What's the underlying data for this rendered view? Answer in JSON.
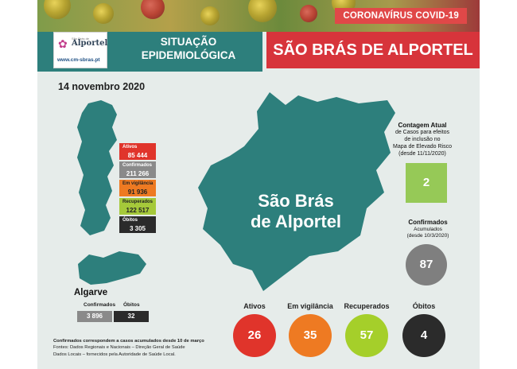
{
  "banner": {
    "tag": "CORONAVÍRUS COVID-19"
  },
  "logo": {
    "name": "Alportel",
    "sub": "São Brás de",
    "url": "www.cm-sbras.pt"
  },
  "header": {
    "situacao_line1": "SITUAÇÃO",
    "situacao_line2": "EPIDEMIOLÓGICA",
    "location": "SÃO BRÁS DE ALPORTEL"
  },
  "date": "14 novembro 2020",
  "portugal": {
    "stats": [
      {
        "label": "Ativos",
        "value": "85 444",
        "label_color": "#e0342b",
        "value_color": "#e0342b",
        "text_color": "#ffffff"
      },
      {
        "label": "Confirmados",
        "value": "211 266",
        "label_color": "#8a8a8a",
        "value_color": "#8a8a8a",
        "text_color": "#ffffff"
      },
      {
        "label": "Em vigilância",
        "value": "91 936",
        "label_color": "#ee7a22",
        "value_color": "#ee7a22",
        "text_color": "#222222"
      },
      {
        "label": "Recuperados",
        "value": "122 517",
        "label_color": "#a5c93a",
        "value_color": "#a5c93a",
        "text_color": "#222222"
      },
      {
        "label": "Óbitos",
        "value": "3 305",
        "label_color": "#2b2b2b",
        "value_color": "#2b2b2b",
        "text_color": "#ffffff"
      }
    ]
  },
  "algarve": {
    "title": "Algarve",
    "confirmados_label": "Confirmados",
    "confirmados_value": "3 896",
    "obitos_label": "Óbitos",
    "obitos_value": "32"
  },
  "map_label": {
    "line1": "São Brás",
    "line2": "de Alportel"
  },
  "contagem": {
    "line1": "Contagem Atual",
    "line2": "de Casos para efeitos",
    "line3": "de inclusão no",
    "line4": "Mapa de Elevado Risco",
    "line5": "(desde 11/11/2020)",
    "value": "2"
  },
  "confirmados_acumulados": {
    "line1": "Confirmados",
    "line2": "Acumulados",
    "line3": "(desde 10/3/2020)",
    "value": "87"
  },
  "local": [
    {
      "label": "Ativos",
      "value": "26",
      "color": "#e0342b"
    },
    {
      "label": "Em vigilância",
      "value": "35",
      "color": "#ee7a22"
    },
    {
      "label": "Recuperados",
      "value": "57",
      "color": "#a5cf2a"
    },
    {
      "label": "Óbitos",
      "value": "4",
      "color": "#2b2b2b"
    }
  ],
  "notes": {
    "line1": "Confirmados correspondem a casos acumulados desde 10 de março",
    "line2": "Fontes: Dados Regionais e Nacionais – Direção Geral de Saúde",
    "line3": "Dados Locais – fornecidos pela Autoridade de Saúde Local."
  },
  "colors": {
    "teal": "#2d7f7c",
    "header_red": "#d7343b",
    "background": "#e6ecea"
  }
}
